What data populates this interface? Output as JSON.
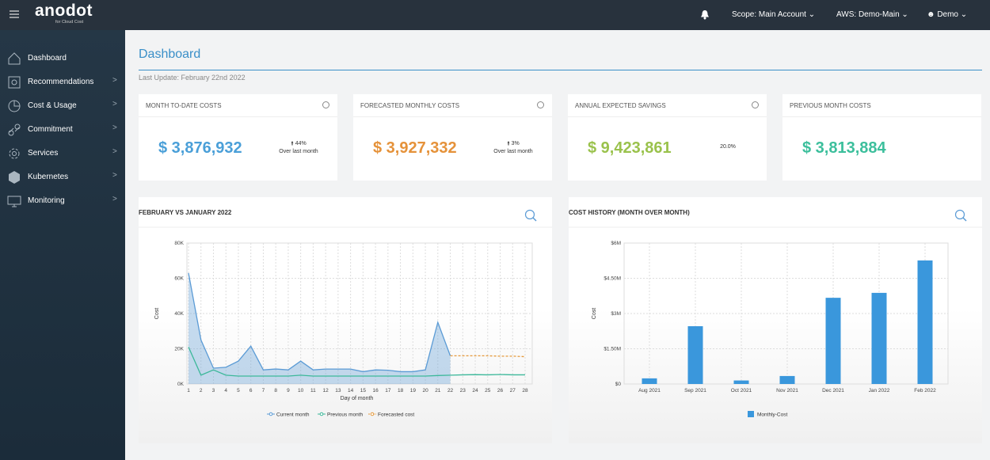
{
  "header": {
    "logo": "anodot",
    "logo_sub": "for Cloud Cost",
    "scope": "Scope: Main Account",
    "account": "AWS: Demo-Main",
    "user": "Demo"
  },
  "sidebar": [
    "Dashboard",
    "Recommendations",
    "Cost & Usage",
    "Commitment",
    "Services",
    "Kubernetes",
    "Monitoring"
  ],
  "page": {
    "title": "Dashboard",
    "last_update": "Last Update: February 22nd 2022"
  },
  "cards": [
    {
      "title": "MONTH TO-DATE COSTS",
      "value": "$ 3,876,932",
      "change": "44%",
      "change_note": "Over last month"
    },
    {
      "title": "FORECASTED MONTHLY COSTS",
      "value": "$ 3,927,332",
      "change": "3%",
      "change_note": "Over last month"
    },
    {
      "title": "ANNUAL EXPECTED SAVINGS",
      "value": "$ 9,423,861",
      "change": "20.0%"
    },
    {
      "title": "PREVIOUS MONTH COSTS",
      "value": "$ 3,813,884"
    }
  ],
  "charts": [
    {
      "type": "line",
      "title": "FEBRUARY  VS JANUARY 2022",
      "x_label": "Day of month",
      "y_label": "Cost",
      "x": [
        1,
        2,
        3,
        4,
        5,
        6,
        7,
        8,
        9,
        10,
        11,
        12,
        13,
        14,
        15,
        16,
        17,
        18,
        19,
        20,
        21,
        22,
        23,
        24,
        25,
        26,
        27,
        28
      ],
      "xlim": [
        1,
        28
      ],
      "series": [
        {
          "name": "Current month",
          "color": "#5b9bd5",
          "area": true,
          "values": [
            63000,
            25000,
            9000,
            9500,
            13000,
            21500,
            8000,
            8500,
            8000,
            13000,
            8000,
            8500,
            8500,
            8500,
            7000,
            8000,
            7800,
            7000,
            7000,
            8000,
            35000,
            16000,
            null,
            null,
            null,
            null,
            null,
            null
          ]
        },
        {
          "name": "Previous month",
          "color": "#3cb89a",
          "values": [
            21000,
            5000,
            8000,
            5000,
            4500,
            4500,
            4500,
            4500,
            4500,
            5000,
            4500,
            4500,
            4500,
            4500,
            4500,
            4500,
            4500,
            4500,
            4500,
            4500,
            4800,
            5000,
            5200,
            5300,
            5200,
            5400,
            5200,
            5200
          ]
        },
        {
          "name": "Forecasted cost",
          "color": "#e59a3c",
          "dashed": true,
          "values": [
            null,
            null,
            null,
            null,
            null,
            null,
            null,
            null,
            null,
            null,
            null,
            null,
            null,
            null,
            null,
            null,
            null,
            null,
            null,
            null,
            null,
            16000,
            16000,
            16000,
            16000,
            15800,
            15800,
            15500
          ]
        }
      ],
      "ylim": [
        0,
        80000
      ],
      "yticks": [
        {
          "value": 0,
          "label": "0K"
        },
        {
          "value": 20000,
          "label": "20K"
        },
        {
          "value": 40000,
          "label": "40K"
        },
        {
          "value": 60000,
          "label": "60K"
        },
        {
          "value": 80000,
          "label": "80K"
        }
      ],
      "grid": true
    },
    {
      "type": "bar",
      "title": "COST HISTORY (MONTH OVER MONTH)",
      "y_label": "Cost",
      "categories": [
        "Aug 2021",
        "Sep 2021",
        "Oct 2021",
        "Nov 2021",
        "Dec 2021",
        "Jan 2022",
        "Feb 2022"
      ],
      "series": [
        {
          "name": "Monthly-Cost",
          "color": "#3a97dc",
          "values": [
            240000,
            2460000,
            150000,
            340000,
            3670000,
            3880000,
            5260000
          ]
        }
      ],
      "ylim": [
        0,
        6000000
      ],
      "yticks": [
        {
          "value": 0,
          "label": "$0"
        },
        {
          "value": 1500000,
          "label": "$1.50M"
        },
        {
          "value": 3000000,
          "label": "$3M"
        },
        {
          "value": 4500000,
          "label": "$4.50M"
        },
        {
          "value": 6000000,
          "label": "$6M"
        }
      ],
      "grid": true
    }
  ]
}
